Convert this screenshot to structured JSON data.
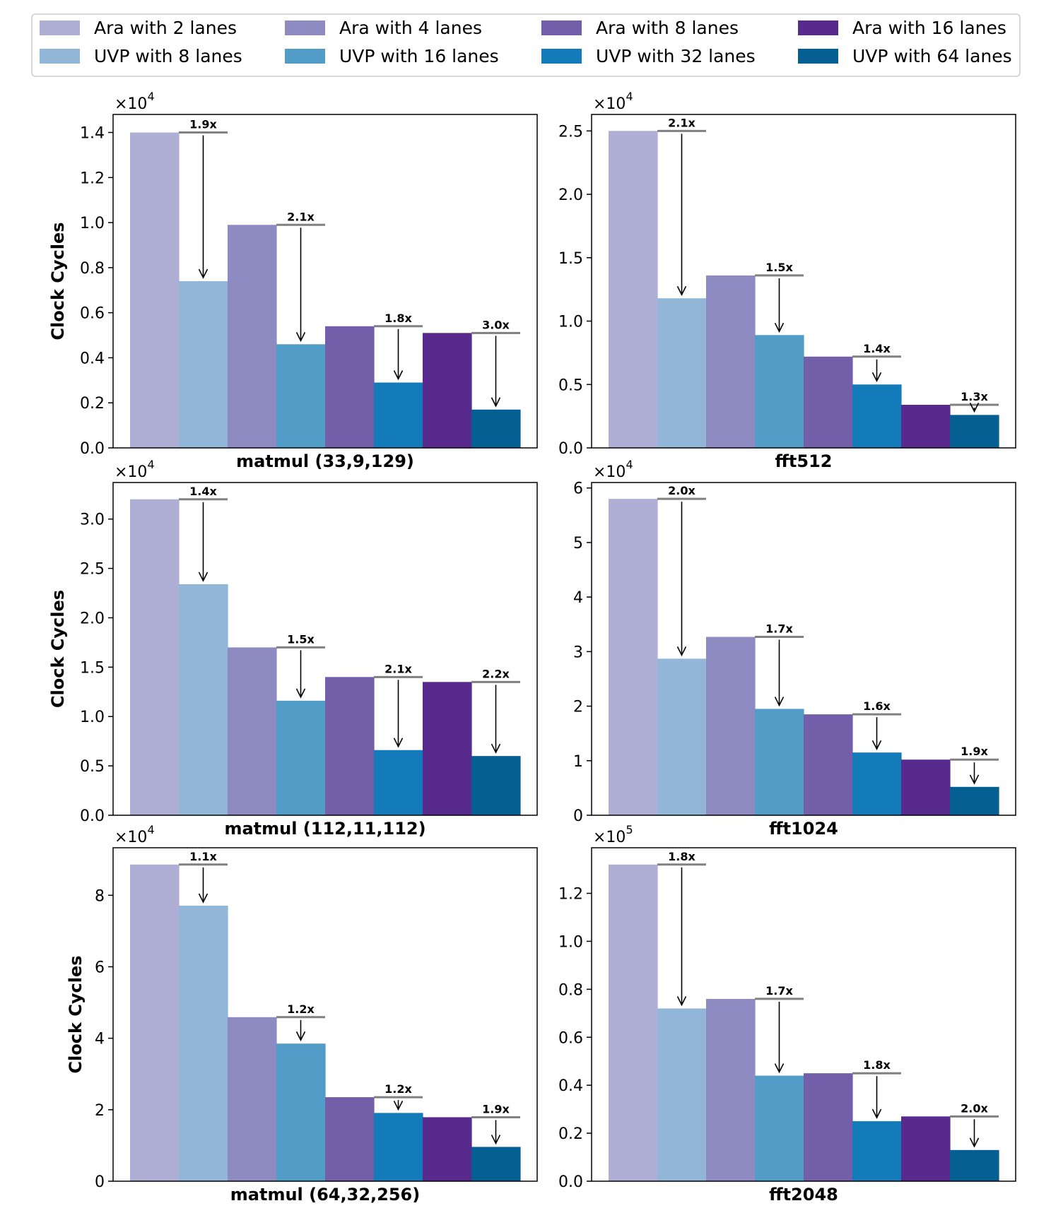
{
  "chart_data": {
    "type": "bar",
    "legend": {
      "placement": "top",
      "entries": [
        {
          "name": "Ara with 2 lanes",
          "color": "#afafd6"
        },
        {
          "name": "Ara with 4 lanes",
          "color": "#8e8ac2"
        },
        {
          "name": "Ara with 8 lanes",
          "color": "#725ea9"
        },
        {
          "name": "Ara with 16 lanes",
          "color": "#582a8e"
        },
        {
          "name": "UVP with 8 lanes",
          "color": "#92b6d8"
        },
        {
          "name": "UVP with 16 lanes",
          "color": "#519dc8"
        },
        {
          "name": "UVP with 32 lanes",
          "color": "#137bb9"
        },
        {
          "name": "UVP with 64 lanes",
          "color": "#065f92"
        }
      ]
    },
    "bar_order": [
      "Ara with 2 lanes",
      "UVP with 8 lanes",
      "Ara with 4 lanes",
      "UVP with 16 lanes",
      "Ara with 8 lanes",
      "UVP with 32 lanes",
      "Ara with 16 lanes",
      "UVP with 64 lanes"
    ],
    "grid": false,
    "panels": [
      {
        "xlabel": "matmul (33,9,129)",
        "ylabel": "Clock Cycles",
        "multiplier_base": "×10",
        "multiplier_exp": "4",
        "ylim": [
          0,
          1.48
        ],
        "yticks": [
          "0.0",
          "0.2",
          "0.4",
          "0.6",
          "0.8",
          "1.0",
          "1.2",
          "1.4"
        ],
        "values": [
          1.4,
          0.74,
          0.99,
          0.46,
          0.54,
          0.29,
          0.51,
          0.17
        ],
        "ratios": [
          "1.9x",
          "2.1x",
          "1.8x",
          "3.0x"
        ]
      },
      {
        "xlabel": "fft512",
        "ylabel": "",
        "multiplier_base": "×10",
        "multiplier_exp": "4",
        "ylim": [
          0,
          2.63
        ],
        "yticks": [
          "0.0",
          "0.5",
          "1.0",
          "1.5",
          "2.0",
          "2.5"
        ],
        "values": [
          2.5,
          1.18,
          1.36,
          0.89,
          0.72,
          0.5,
          0.34,
          0.26
        ],
        "ratios": [
          "2.1x",
          "1.5x",
          "1.4x",
          "1.3x"
        ]
      },
      {
        "xlabel": "matmul (112,11,112)",
        "ylabel": "Clock Cycles",
        "multiplier_base": "×10",
        "multiplier_exp": "4",
        "ylim": [
          0,
          3.37
        ],
        "yticks": [
          "0.0",
          "0.5",
          "1.0",
          "1.5",
          "2.0",
          "2.5",
          "3.0"
        ],
        "values": [
          3.2,
          2.34,
          1.7,
          1.16,
          1.4,
          0.66,
          1.35,
          0.6
        ],
        "ratios": [
          "1.4x",
          "1.5x",
          "2.1x",
          "2.2x"
        ]
      },
      {
        "xlabel": "fft1024",
        "ylabel": "",
        "multiplier_base": "×10",
        "multiplier_exp": "4",
        "ylim": [
          0,
          6.1
        ],
        "yticks": [
          "0",
          "1",
          "2",
          "3",
          "4",
          "5",
          "6"
        ],
        "values": [
          5.8,
          2.87,
          3.27,
          1.95,
          1.85,
          1.15,
          1.02,
          0.52
        ],
        "ratios": [
          "2.0x",
          "1.7x",
          "1.6x",
          "1.9x"
        ]
      },
      {
        "xlabel": "matmul (64,32,256)",
        "ylabel": "Clock Cycles",
        "multiplier_base": "×10",
        "multiplier_exp": "4",
        "ylim": [
          0,
          9.33
        ],
        "yticks": [
          "0",
          "2",
          "4",
          "6",
          "8"
        ],
        "values": [
          8.86,
          7.71,
          4.59,
          3.85,
          2.35,
          1.91,
          1.79,
          0.96
        ],
        "ratios": [
          "1.1x",
          "1.2x",
          "1.2x",
          "1.9x"
        ]
      },
      {
        "xlabel": "fft2048",
        "ylabel": "",
        "multiplier_base": "×10",
        "multiplier_exp": "5",
        "ylim": [
          0,
          1.39
        ],
        "yticks": [
          "0.0",
          "0.2",
          "0.4",
          "0.6",
          "0.8",
          "1.0",
          "1.2"
        ],
        "values": [
          1.32,
          0.72,
          0.76,
          0.44,
          0.45,
          0.25,
          0.27,
          0.13
        ],
        "ratios": [
          "1.8x",
          "1.7x",
          "1.8x",
          "2.0x"
        ]
      }
    ]
  }
}
